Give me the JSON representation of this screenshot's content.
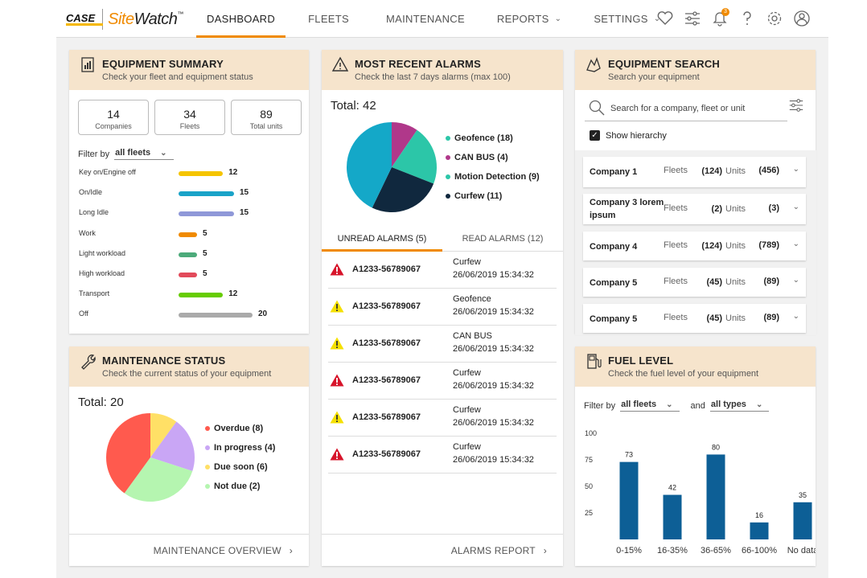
{
  "brand": {
    "case": "CASE",
    "case_sub": "CONSTRUCTION",
    "site": "Site",
    "watch": "Watch",
    "tm": "™"
  },
  "nav": {
    "dashboard": "DASHBOARD",
    "fleets": "FLEETS",
    "maintenance": "MAINTENANCE",
    "reports": "REPORTS",
    "settings": "SETTINGS"
  },
  "notifications_count": "3",
  "equipment_summary": {
    "title": "EQUIPMENT SUMMARY",
    "subtitle": "Check your fleet and equipment status",
    "stats": [
      {
        "value": "14",
        "label": "Companies"
      },
      {
        "value": "34",
        "label": "Fleets"
      },
      {
        "value": "89",
        "label": "Total units"
      }
    ],
    "filter_label": "Filter by",
    "filter_value": "all fleets",
    "rows": [
      {
        "label": "Key on/Engine off",
        "value": 12,
        "color": "#f5c400"
      },
      {
        "label": "On/Idle",
        "value": 15,
        "color": "#1aa3c8"
      },
      {
        "label": "Long Idle",
        "value": 15,
        "color": "#8f98d8"
      },
      {
        "label": "Work",
        "value": 5,
        "color": "#f08a00"
      },
      {
        "label": "Light workload",
        "value": 5,
        "color": "#4caa7a"
      },
      {
        "label": "High workload",
        "value": 5,
        "color": "#e24a5a"
      },
      {
        "label": "Transport",
        "value": 12,
        "color": "#66cc00"
      },
      {
        "label": "Off",
        "value": 20,
        "color": "#aaaaaa"
      }
    ]
  },
  "alarms": {
    "title": "MOST RECENT ALARMS",
    "subtitle": "Check the last 7 days alarms (max 100)",
    "total": "Total: 42",
    "legend": [
      {
        "label": "Geofence (18)",
        "value": 18,
        "color": "#2cc6a8"
      },
      {
        "label": "CAN BUS (4)",
        "value": 4,
        "color": "#b0388a"
      },
      {
        "label": "Motion Detection (9)",
        "value": 9,
        "color": "#2cc6a8"
      },
      {
        "label": "Curfew (11)",
        "value": 11,
        "color": "#10283e"
      }
    ],
    "pie": [
      {
        "value": 4,
        "color": "#b0388a"
      },
      {
        "value": 9,
        "color": "#2cc6a8"
      },
      {
        "value": 11,
        "color": "#10283e"
      },
      {
        "value": 18,
        "color": "#14a8c8"
      }
    ],
    "tab_unread": "UNREAD ALARMS (5)",
    "tab_read": "READ ALARMS (12)",
    "items": [
      {
        "severity": "red",
        "id": "A1233-56789067",
        "type": "Curfew",
        "datetime": "26/06/2019 15:34:32"
      },
      {
        "severity": "yellow",
        "id": "A1233-56789067",
        "type": "Geofence",
        "datetime": "26/06/2019 15:34:32"
      },
      {
        "severity": "yellow",
        "id": "A1233-56789067",
        "type": "CAN BUS",
        "datetime": "26/06/2019 15:34:32"
      },
      {
        "severity": "red",
        "id": "A1233-56789067",
        "type": "Curfew",
        "datetime": "26/06/2019 15:34:32"
      },
      {
        "severity": "yellow",
        "id": "A1233-56789067",
        "type": "Curfew",
        "datetime": "26/06/2019 15:34:32"
      },
      {
        "severity": "red",
        "id": "A1233-56789067",
        "type": "Curfew",
        "datetime": "26/06/2019 15:34:32"
      }
    ],
    "footer": "ALARMS REPORT"
  },
  "search": {
    "title": "EQUIPMENT SEARCH",
    "subtitle": "Search your equipment",
    "placeholder": "Search for a company, fleet or unit",
    "hierarchy_label": "Show hierarchy",
    "fleets_label": "Fleets",
    "units_label": "Units",
    "companies": [
      {
        "name": "Company 1",
        "fleets": "(124)",
        "units": "(456)"
      },
      {
        "name": "Company 3 lorem ipsum",
        "fleets": "(2)",
        "units": "(3)"
      },
      {
        "name": "Company 4",
        "fleets": "(124)",
        "units": "(789)"
      },
      {
        "name": "Company 5",
        "fleets": "(45)",
        "units": "(89)"
      },
      {
        "name": "Company 5",
        "fleets": "(45)",
        "units": "(89)"
      }
    ]
  },
  "maintenance": {
    "title": "MAINTENANCE STATUS",
    "subtitle": "Check the current status of your equipment",
    "total": "Total: 20",
    "legend": [
      {
        "label": "Overdue (8)",
        "value": 8,
        "color": "#ff5a4e"
      },
      {
        "label": "In progress (4)",
        "value": 4,
        "color": "#c9a6f5"
      },
      {
        "label": "Due soon (6)",
        "value": 6,
        "color": "#ffe066"
      },
      {
        "label": "Not due (2)",
        "value": 2,
        "color": "#b5f5b0"
      }
    ],
    "pie": [
      {
        "value": 2,
        "color": "#ffe066"
      },
      {
        "value": 4,
        "color": "#c9a6f5"
      },
      {
        "value": 6,
        "color": "#b5f5b0"
      },
      {
        "value": 8,
        "color": "#ff5a4e"
      }
    ],
    "footer": "MAINTENANCE OVERVIEW"
  },
  "fuel": {
    "title": "FUEL LEVEL",
    "subtitle": "Check the fuel level of your equipment",
    "filter_label": "Filter by",
    "filter_value": "all fleets",
    "and_label": "and",
    "type_value": "all types"
  },
  "chart_data": {
    "type": "bar",
    "categories": [
      "0-15%",
      "16-35%",
      "36-65%",
      "66-100%",
      "No data"
    ],
    "values": [
      73,
      42,
      80,
      16,
      35
    ],
    "yticks": [
      100,
      75,
      50,
      25
    ],
    "ylim": [
      0,
      100
    ],
    "color": "#0d5f96",
    "grid": false
  }
}
